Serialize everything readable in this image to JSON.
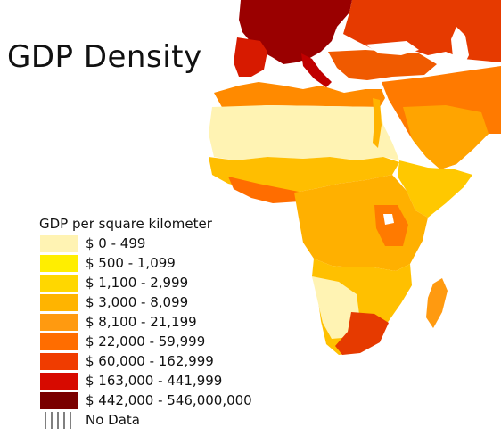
{
  "title": "GDP Density",
  "legend": {
    "title": "GDP per square kilometer",
    "items": [
      {
        "label": "$ 0 - 499",
        "color": "#fff3b3"
      },
      {
        "label": "$ 500 - 1,099",
        "color": "#ffee00"
      },
      {
        "label": "$ 1,100 - 2,999",
        "color": "#ffd700"
      },
      {
        "label": "$ 3,000 - 8,099",
        "color": "#ffb400"
      },
      {
        "label": "$ 8,100 - 21,199",
        "color": "#ff9a10"
      },
      {
        "label": "$ 22,000 - 59,999",
        "color": "#ff6d00"
      },
      {
        "label": "$ 60,000 - 162,999",
        "color": "#f03c00"
      },
      {
        "label": "$ 163,000 - 441,999",
        "color": "#d70a00"
      },
      {
        "label": "$ 442,000 - 546,000,000",
        "color": "#7a0000"
      }
    ],
    "nodata_label": "No Data"
  }
}
